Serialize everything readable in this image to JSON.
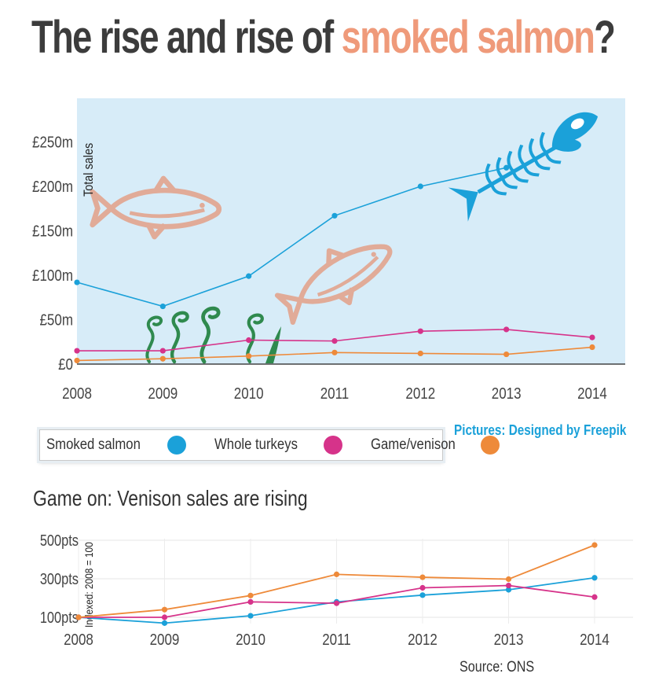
{
  "title": {
    "prefix": "The rise and rise of ",
    "accent": "smoked salmon",
    "suffix": "?"
  },
  "credit": "Pictures: Designed by Freepik",
  "source": "Source: ONS",
  "colors": {
    "smoked_salmon": "#1ba1d9",
    "whole_turkeys": "#d6338a",
    "game_venison": "#ee8a3a",
    "title_accent": "#ef9a7a",
    "plot_background": "#d7ecf8",
    "fish_illustration": "#e1ab98",
    "seaweed": "#2f8a4e"
  },
  "legend": [
    {
      "label": "Smoked salmon",
      "color": "#1ba1d9"
    },
    {
      "label": "Whole turkeys",
      "color": "#d6338a"
    },
    {
      "label": "Game/venison",
      "color": "#ee8a3a"
    }
  ],
  "illustrations": [
    "salmon-icon",
    "salmon-icon",
    "fish-skeleton-icon",
    "seaweed-icon"
  ],
  "chart_data": [
    {
      "type": "line",
      "title": "",
      "xlabel": "",
      "ylabel": "Total sales",
      "x": [
        "2008",
        "2009",
        "2010",
        "2011",
        "2012",
        "2013",
        "2014"
      ],
      "y_ticks": [
        0,
        50,
        100,
        150,
        200,
        250
      ],
      "y_tick_labels": [
        "£0",
        "£50m",
        "£100m",
        "£150m",
        "£200m",
        "£250m"
      ],
      "ylim": [
        0,
        300
      ],
      "grid": false,
      "series": [
        {
          "name": "Smoked salmon",
          "color": "#1ba1d9",
          "values": [
            92,
            65,
            99,
            167,
            200,
            221,
            null
          ]
        },
        {
          "name": "Whole turkeys",
          "color": "#d6338a",
          "values": [
            15,
            15,
            27,
            26,
            37,
            39,
            30
          ]
        },
        {
          "name": "Game/venison",
          "color": "#ee8a3a",
          "values": [
            4,
            6,
            9,
            13,
            12,
            11,
            19
          ]
        }
      ]
    },
    {
      "type": "line",
      "title": "Game on: Venison sales are rising",
      "xlabel": "",
      "ylabel": "Indexed: 2008 = 100",
      "x": [
        "2008",
        "2009",
        "2010",
        "2011",
        "2012",
        "2013",
        "2014"
      ],
      "y_ticks": [
        100,
        300,
        500
      ],
      "y_tick_labels": [
        "100pts",
        "300pts",
        "500pts"
      ],
      "ylim": [
        60,
        520
      ],
      "grid": true,
      "series": [
        {
          "name": "Smoked salmon",
          "color": "#1ba1d9",
          "values": [
            100,
            70,
            108,
            180,
            215,
            243,
            305
          ]
        },
        {
          "name": "Whole turkeys",
          "color": "#d6338a",
          "values": [
            100,
            100,
            180,
            173,
            253,
            265,
            205
          ]
        },
        {
          "name": "Game/venison",
          "color": "#ee8a3a",
          "values": [
            100,
            140,
            213,
            323,
            308,
            298,
            475
          ]
        }
      ]
    }
  ]
}
